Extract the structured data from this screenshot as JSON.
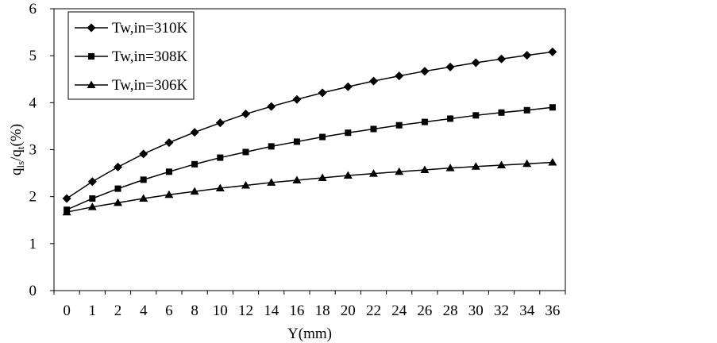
{
  "chart_data": {
    "type": "line",
    "xlabel": "Y(mm)",
    "ylabel": {
      "base": "q",
      "sub1": "ls",
      "mid": "/q",
      "sub2": "t",
      "suffix": "(%)"
    },
    "x": [
      "0",
      "1",
      "2",
      "4",
      "6",
      "8",
      "10",
      "12",
      "14",
      "16",
      "18",
      "20",
      "22",
      "24",
      "26",
      "28",
      "30",
      "32",
      "34",
      "36"
    ],
    "ylim": [
      0,
      6
    ],
    "yticks": [
      "0",
      "1",
      "2",
      "3",
      "4",
      "5",
      "6"
    ],
    "grid": false,
    "legend_position": "top-left",
    "series": [
      {
        "name": "Tw,in=310K",
        "marker": "diamond",
        "values": [
          1.96,
          2.32,
          2.63,
          2.91,
          3.15,
          3.37,
          3.57,
          3.76,
          3.92,
          4.07,
          4.21,
          4.34,
          4.46,
          4.57,
          4.67,
          4.76,
          4.85,
          4.93,
          5.01,
          5.08
        ]
      },
      {
        "name": "Tw,in=308K",
        "marker": "square",
        "values": [
          1.72,
          1.96,
          2.17,
          2.36,
          2.53,
          2.69,
          2.83,
          2.95,
          3.07,
          3.17,
          3.27,
          3.36,
          3.44,
          3.52,
          3.59,
          3.66,
          3.73,
          3.79,
          3.84,
          3.9
        ]
      },
      {
        "name": "Tw,in=306K",
        "marker": "triangle",
        "values": [
          1.67,
          1.78,
          1.87,
          1.96,
          2.04,
          2.11,
          2.18,
          2.24,
          2.3,
          2.35,
          2.4,
          2.45,
          2.49,
          2.53,
          2.57,
          2.61,
          2.64,
          2.67,
          2.7,
          2.73
        ]
      }
    ]
  }
}
